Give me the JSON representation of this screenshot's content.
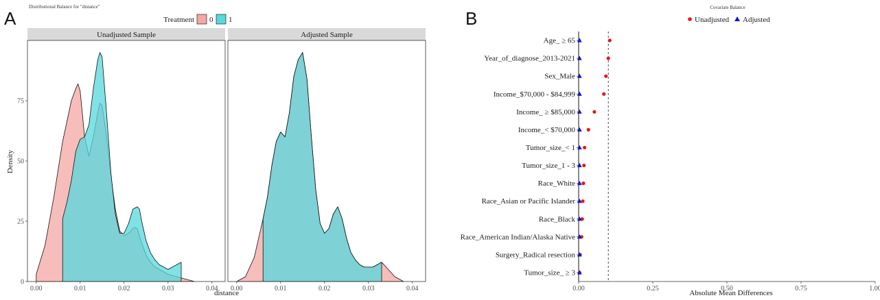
{
  "panel_a": {
    "letter": "A",
    "title": "Distributional Balance for \"distance\"",
    "legend_title": "Treatment",
    "legend_labels": [
      "0",
      "1"
    ],
    "strip_left": "Unadjusted Sample",
    "strip_right": "Adjusted Sample",
    "xlabel": "distance",
    "ylabel": "Density"
  },
  "panel_b": {
    "letter": "B",
    "title": "Covariate Balance",
    "legend_labels": [
      "Unadjusted",
      "Adjusted"
    ],
    "xlabel": "Absolute Mean Differences"
  },
  "chart_data": [
    {
      "type": "area",
      "panel": "Unadjusted Sample",
      "title": "Distributional Balance for \"distance\"",
      "xlabel": "distance",
      "ylabel": "Density",
      "xlim": [
        -0.002,
        0.043
      ],
      "ylim": [
        0,
        100
      ],
      "x_ticks": [
        "0.00",
        "0.01",
        "0.02",
        "0.03",
        "0.04"
      ],
      "x_tick_values": [
        0.0,
        0.01,
        0.02,
        0.03,
        0.04
      ],
      "y_ticks": [
        "0",
        "25",
        "50",
        "75"
      ],
      "y_tick_values": [
        0,
        25,
        50,
        75
      ],
      "grid": false,
      "series": [
        {
          "name": "0",
          "color": "#F4A7A3",
          "x": [
            0.0,
            0.002,
            0.004,
            0.006,
            0.008,
            0.009,
            0.0095,
            0.01,
            0.011,
            0.012,
            0.013,
            0.014,
            0.0145,
            0.015,
            0.016,
            0.017,
            0.018,
            0.019,
            0.02,
            0.021,
            0.022,
            0.0225,
            0.023,
            0.024,
            0.025,
            0.026,
            0.027,
            0.028,
            0.029,
            0.03,
            0.032,
            0.034,
            0.036
          ],
          "y": [
            3,
            15,
            35,
            58,
            75,
            80,
            82,
            79,
            60,
            52,
            60,
            70,
            74,
            73,
            60,
            44,
            30,
            21,
            19,
            20,
            22,
            22.5,
            22,
            16,
            11,
            8,
            6,
            5,
            4,
            3,
            2,
            1,
            0
          ]
        },
        {
          "name": "1",
          "color": "#55D8DE",
          "x": [
            0.006,
            0.007,
            0.008,
            0.009,
            0.01,
            0.011,
            0.012,
            0.013,
            0.014,
            0.0145,
            0.015,
            0.016,
            0.017,
            0.018,
            0.019,
            0.02,
            0.021,
            0.022,
            0.023,
            0.0235,
            0.024,
            0.025,
            0.026,
            0.027,
            0.028,
            0.029,
            0.03,
            0.031,
            0.032,
            0.033
          ],
          "y": [
            26,
            33,
            42,
            54,
            59,
            60,
            65,
            80,
            92,
            95,
            93,
            70,
            45,
            28,
            20,
            20,
            24,
            30,
            31,
            30,
            25,
            17,
            12,
            9,
            7,
            6,
            5,
            6,
            7,
            8
          ]
        }
      ]
    },
    {
      "type": "area",
      "panel": "Adjusted Sample",
      "xlabel": "distance",
      "xlim": [
        -0.002,
        0.043
      ],
      "ylim": [
        0,
        100
      ],
      "x_ticks": [
        "0.00",
        "0.01",
        "0.02",
        "0.03",
        "0.04"
      ],
      "x_tick_values": [
        0.0,
        0.01,
        0.02,
        0.03,
        0.04
      ],
      "grid": false,
      "series": [
        {
          "name": "0",
          "color": "#F4A7A3",
          "x": [
            0.0,
            0.002,
            0.004,
            0.006,
            0.007,
            0.008,
            0.009,
            0.01,
            0.011,
            0.012,
            0.013,
            0.014,
            0.015,
            0.016,
            0.017,
            0.018,
            0.019,
            0.02,
            0.021,
            0.022,
            0.023,
            0.024,
            0.025,
            0.026,
            0.027,
            0.028,
            0.029,
            0.03,
            0.031,
            0.032,
            0.033,
            0.034,
            0.035,
            0.036,
            0.037,
            0.038
          ],
          "y": [
            0,
            2,
            10,
            26,
            35,
            48,
            58,
            62,
            60,
            70,
            85,
            92,
            95,
            84,
            60,
            38,
            24,
            20,
            22,
            28,
            31,
            26,
            18,
            12,
            9,
            7,
            6,
            6,
            6,
            7,
            8,
            6,
            4,
            2,
            1,
            0
          ]
        },
        {
          "name": "1",
          "color": "#55D8DE",
          "x": [
            0.006,
            0.007,
            0.008,
            0.009,
            0.01,
            0.011,
            0.012,
            0.013,
            0.014,
            0.015,
            0.016,
            0.017,
            0.018,
            0.019,
            0.02,
            0.021,
            0.022,
            0.023,
            0.024,
            0.025,
            0.026,
            0.027,
            0.028,
            0.029,
            0.03,
            0.031,
            0.032,
            0.033
          ],
          "y": [
            26,
            35,
            48,
            58,
            62,
            60,
            70,
            85,
            92,
            95,
            84,
            60,
            38,
            24,
            20,
            22,
            28,
            31,
            26,
            18,
            12,
            9,
            7,
            6,
            6,
            6,
            7,
            8
          ]
        }
      ]
    },
    {
      "type": "scatter",
      "title": "Covariate Balance",
      "xlabel": "Absolute Mean Differences",
      "xlim": [
        0,
        1
      ],
      "x_ticks": [
        "0.00",
        "0.25",
        "0.50",
        "0.75",
        "1.00"
      ],
      "x_tick_values": [
        0,
        0.25,
        0.5,
        0.75,
        1.0
      ],
      "threshold": 0.1,
      "categories": [
        "Age_ ≥  65",
        "Year_of_diagnose_2013-2021",
        "Sex_Male",
        "Income_$70,000 - $84,999",
        "Income_ ≥  $85,000",
        "Income_< $70,000",
        "Tumor_size_< 1",
        "Tumor_size_1 - 3",
        "Race_White",
        "Race_Asian or Pacific Islander",
        "Race_Black",
        "Race_American Indian/Alaska Native",
        "Surgery_Radical resection",
        "Tumor_size_ ≥  3"
      ],
      "series": [
        {
          "name": "Unadjusted",
          "color": "#E8161B",
          "marker": "circle",
          "values": [
            0.105,
            0.1,
            0.092,
            0.085,
            0.053,
            0.033,
            0.02,
            0.018,
            0.016,
            0.014,
            0.012,
            0.01,
            0.005,
            0.003
          ]
        },
        {
          "name": "Adjusted",
          "color": "#1515C9",
          "marker": "triangle",
          "values": [
            0.003,
            0.003,
            0.003,
            0.003,
            0.003,
            0.003,
            0.003,
            0.003,
            0.003,
            0.003,
            0.003,
            0.003,
            0.003,
            0.003
          ]
        }
      ]
    }
  ]
}
